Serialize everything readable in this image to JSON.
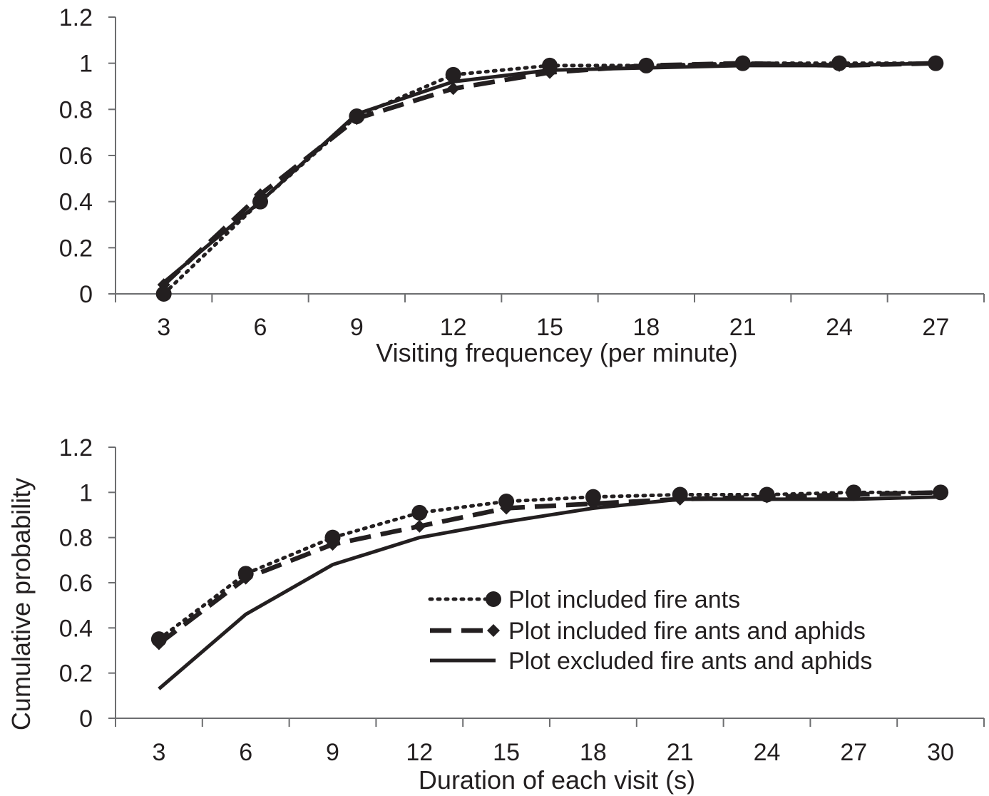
{
  "chart_data": [
    {
      "type": "line",
      "x": [
        3,
        6,
        9,
        12,
        15,
        18,
        21,
        24,
        27
      ],
      "xlabel": "Visiting frequencey (per minute)",
      "ylabel": "",
      "ylim": [
        0,
        1.2
      ],
      "yticks": [
        "0",
        "0.2",
        "0.4",
        "0.6",
        "0.8",
        "1",
        "1.2"
      ],
      "grid": false,
      "series": [
        {
          "name": "Plot included fire ants",
          "style": "dotted",
          "marker": "circle",
          "values": [
            0.0,
            0.4,
            0.77,
            0.95,
            0.99,
            0.99,
            1.0,
            1.0,
            1.0
          ]
        },
        {
          "name": "Plot included fire ants and aphids",
          "style": "dashed",
          "marker": "diamond",
          "values": [
            0.04,
            0.43,
            0.76,
            0.89,
            0.96,
            0.99,
            1.0,
            0.99,
            1.0
          ]
        },
        {
          "name": "Plot excluded fire ants and aphids",
          "style": "solid",
          "marker": "none",
          "values": [
            0.05,
            0.4,
            0.78,
            0.92,
            0.97,
            0.98,
            0.99,
            0.99,
            1.0
          ]
        }
      ]
    },
    {
      "type": "line",
      "x": [
        3,
        6,
        9,
        12,
        15,
        18,
        21,
        24,
        27,
        30
      ],
      "xlabel": "Duration of each visit (s)",
      "ylabel": "Cumulative probability",
      "ylim": [
        0,
        1.2
      ],
      "yticks": [
        "0",
        "0.2",
        "0.4",
        "0.6",
        "0.8",
        "1",
        "1.2"
      ],
      "grid": false,
      "legend_position": "center-right",
      "series": [
        {
          "name": "Plot included fire ants",
          "style": "dotted",
          "marker": "circle",
          "values": [
            0.35,
            0.64,
            0.8,
            0.91,
            0.96,
            0.98,
            0.99,
            0.99,
            1.0,
            1.0
          ]
        },
        {
          "name": "Plot included fire ants and aphids",
          "style": "dashed",
          "marker": "diamond",
          "values": [
            0.33,
            0.62,
            0.77,
            0.85,
            0.93,
            0.95,
            0.97,
            0.98,
            0.99,
            1.0
          ]
        },
        {
          "name": "Plot excluded fire ants and aphids",
          "style": "solid",
          "marker": "none",
          "values": [
            0.13,
            0.46,
            0.68,
            0.8,
            0.87,
            0.93,
            0.97,
            0.97,
            0.97,
            0.98
          ]
        }
      ]
    }
  ],
  "colors": {
    "ink": "#231f20",
    "axis": "#6d6e70",
    "background": "#ffffff"
  }
}
